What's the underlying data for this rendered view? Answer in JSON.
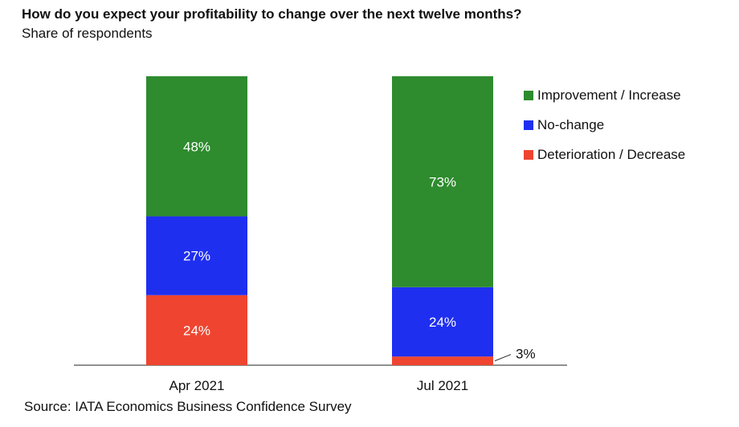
{
  "title": "How do you expect your profitability to change over the next twelve months?",
  "subtitle": "Share of respondents",
  "source": "Source: IATA Economics Business Confidence Survey",
  "colors": {
    "improvement": "#2e8b2e",
    "no_change": "#1f2ff0",
    "deterioration": "#ef4530"
  },
  "legend": [
    {
      "label": "Improvement / Increase",
      "color": "#2e8b2e"
    },
    {
      "label": "No-change",
      "color": "#1f2ff0"
    },
    {
      "label": "Deterioration / Decrease",
      "color": "#ef4530"
    }
  ],
  "chart_data": {
    "type": "bar",
    "stacked": true,
    "categories": [
      "Apr 2021",
      "Jul 2021"
    ],
    "series": [
      {
        "name": "Deterioration / Decrease",
        "values": [
          24,
          3
        ],
        "labels": [
          "24%",
          "3%"
        ]
      },
      {
        "name": "No-change",
        "values": [
          27,
          24
        ],
        "labels": [
          "27%",
          "24%"
        ]
      },
      {
        "name": "Improvement / Increase",
        "values": [
          48,
          73
        ],
        "labels": [
          "48%",
          "73%"
        ]
      }
    ],
    "ylim": [
      0,
      100
    ],
    "grid": false,
    "legend_position": "right"
  }
}
